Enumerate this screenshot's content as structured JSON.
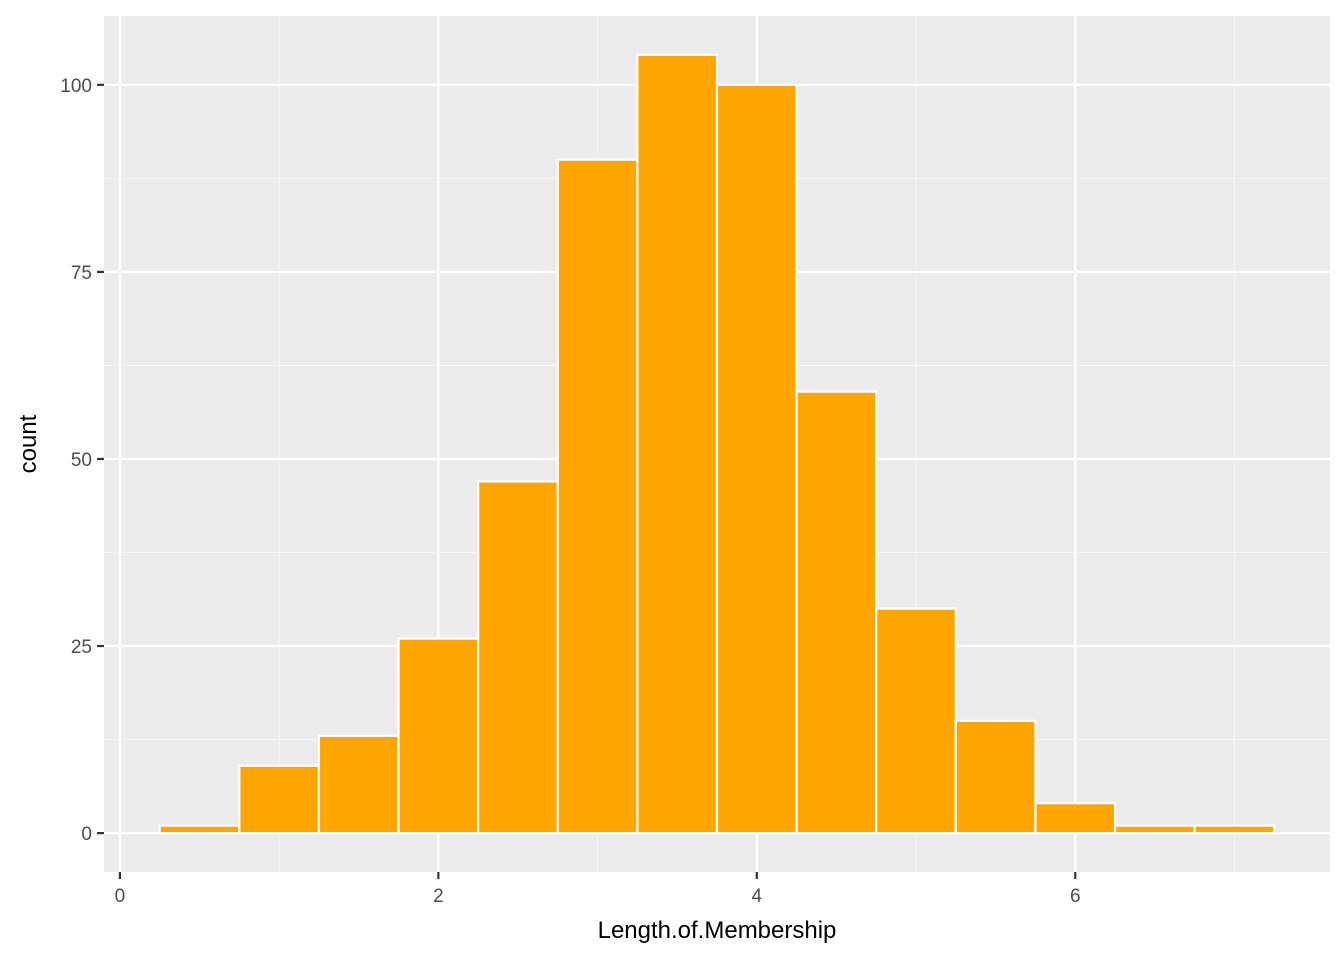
{
  "chart_data": {
    "type": "bar",
    "subtype": "histogram",
    "title": "",
    "xlabel": "Length.of.Membership",
    "ylabel": "count",
    "bin_width": 0.5,
    "bins": [
      {
        "x0": 0.25,
        "x1": 0.75,
        "count": 1
      },
      {
        "x0": 0.75,
        "x1": 1.25,
        "count": 9
      },
      {
        "x0": 1.25,
        "x1": 1.75,
        "count": 13
      },
      {
        "x0": 1.75,
        "x1": 2.25,
        "count": 26
      },
      {
        "x0": 2.25,
        "x1": 2.75,
        "count": 47
      },
      {
        "x0": 2.75,
        "x1": 3.25,
        "count": 90
      },
      {
        "x0": 3.25,
        "x1": 3.75,
        "count": 104
      },
      {
        "x0": 3.75,
        "x1": 4.25,
        "count": 100
      },
      {
        "x0": 4.25,
        "x1": 4.75,
        "count": 59
      },
      {
        "x0": 4.75,
        "x1": 5.25,
        "count": 30
      },
      {
        "x0": 5.25,
        "x1": 5.75,
        "count": 15
      },
      {
        "x0": 5.75,
        "x1": 6.25,
        "count": 4
      },
      {
        "x0": 6.25,
        "x1": 6.75,
        "count": 1
      },
      {
        "x0": 6.75,
        "x1": 7.25,
        "count": 1
      }
    ],
    "xlim": [
      -0.1,
      7.6
    ],
    "ylim": [
      -5.2,
      109.2
    ],
    "x_ticks": [
      0,
      2,
      4,
      6
    ],
    "y_ticks": [
      0,
      25,
      50,
      75,
      100
    ],
    "grid": true,
    "legend": "none",
    "colors": {
      "bar_fill": "#FFA500",
      "bar_outline": "#FFFFFF",
      "panel_background": "#EBEBEB",
      "grid_major": "#FFFFFF",
      "grid_minor": "#F5F5F5",
      "tick_color": "#333333"
    }
  }
}
